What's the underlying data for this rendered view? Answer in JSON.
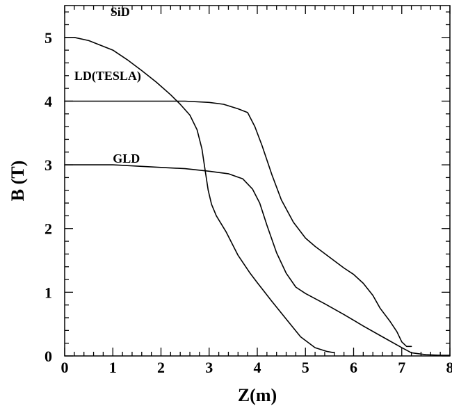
{
  "chart_data": {
    "type": "line",
    "title": "",
    "xlabel": "Z(m)",
    "ylabel": "B (T)",
    "xlim": [
      0,
      8
    ],
    "ylim": [
      0,
      5.5
    ],
    "x_ticks": [
      "0",
      "1",
      "2",
      "3",
      "4",
      "5",
      "6",
      "7",
      "8"
    ],
    "y_ticks": [
      "0",
      "1",
      "2",
      "3",
      "4",
      "5"
    ],
    "x_minor_per_major": 5,
    "y_minor_per_major": 5,
    "grid": false,
    "legend": "none",
    "series": [
      {
        "name": "SiD",
        "label_at": [
          0.95,
          5.4
        ],
        "x": [
          0,
          0.2,
          0.5,
          0.8,
          1.0,
          1.3,
          1.6,
          1.9,
          2.2,
          2.4,
          2.6,
          2.75,
          2.85,
          2.92,
          2.98,
          3.05,
          3.15,
          3.35,
          3.6,
          3.85,
          4.0,
          4.3,
          4.6,
          4.9,
          5.2,
          5.45,
          5.6
        ],
        "y": [
          5.0,
          5.0,
          4.95,
          4.86,
          4.8,
          4.65,
          4.48,
          4.3,
          4.1,
          3.95,
          3.78,
          3.55,
          3.25,
          2.9,
          2.6,
          2.38,
          2.2,
          1.95,
          1.58,
          1.3,
          1.15,
          0.86,
          0.58,
          0.3,
          0.13,
          0.07,
          0.05
        ]
      },
      {
        "name": "LD(TESLA)",
        "label_at": [
          0.2,
          4.4
        ],
        "x": [
          0,
          0.5,
          1.0,
          1.5,
          2.0,
          2.5,
          3.0,
          3.3,
          3.6,
          3.8,
          3.95,
          4.1,
          4.3,
          4.5,
          4.75,
          5.0,
          5.2,
          5.5,
          5.8,
          6.0,
          6.2,
          6.4,
          6.55,
          6.75,
          6.9,
          7.0,
          7.1,
          7.2
        ],
        "y": [
          4.0,
          4.0,
          4.0,
          4.0,
          4.0,
          4.0,
          3.98,
          3.95,
          3.88,
          3.82,
          3.6,
          3.3,
          2.85,
          2.45,
          2.1,
          1.85,
          1.72,
          1.55,
          1.38,
          1.28,
          1.14,
          0.95,
          0.75,
          0.55,
          0.38,
          0.22,
          0.15,
          0.15
        ]
      },
      {
        "name": "GLD",
        "label_at": [
          1.0,
          3.1
        ],
        "x": [
          0,
          0.5,
          1.0,
          1.5,
          2.0,
          2.5,
          3.0,
          3.4,
          3.7,
          3.9,
          4.05,
          4.2,
          4.4,
          4.6,
          4.8,
          5.0,
          5.4,
          5.8,
          6.2,
          6.6,
          7.0,
          7.2,
          7.5,
          7.8,
          8.0
        ],
        "y": [
          3.0,
          3.0,
          3.0,
          2.98,
          2.96,
          2.94,
          2.9,
          2.86,
          2.78,
          2.62,
          2.4,
          2.05,
          1.62,
          1.3,
          1.08,
          0.98,
          0.82,
          0.65,
          0.47,
          0.3,
          0.13,
          0.05,
          0.02,
          0.01,
          0.01
        ]
      }
    ]
  }
}
